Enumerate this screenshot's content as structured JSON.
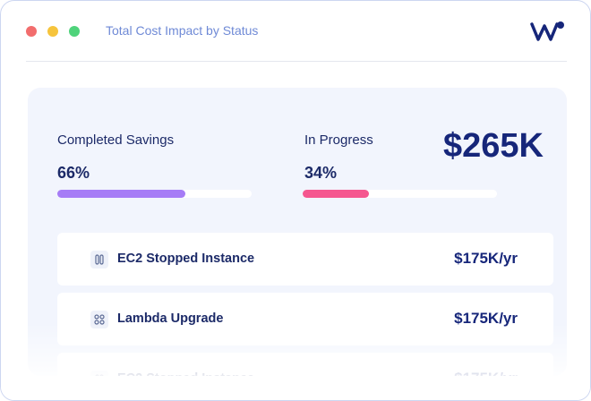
{
  "header": {
    "title": "Total Cost Impact by Status"
  },
  "summary": {
    "total": "$265K",
    "progress": [
      {
        "label": "Completed Savings",
        "percent": "66%",
        "color": "#a67cf6"
      },
      {
        "label": "In Progress",
        "percent": "34%",
        "color": "#f5578f"
      }
    ]
  },
  "items": [
    {
      "name": "EC2 Stopped Instance",
      "value": "$175K/yr",
      "icon": "pause"
    },
    {
      "name": "Lambda Upgrade",
      "value": "$175K/yr",
      "icon": "grid"
    },
    {
      "name": "EC2 Stopped Instance",
      "value": "$175K/yr",
      "icon": "pause"
    }
  ]
}
